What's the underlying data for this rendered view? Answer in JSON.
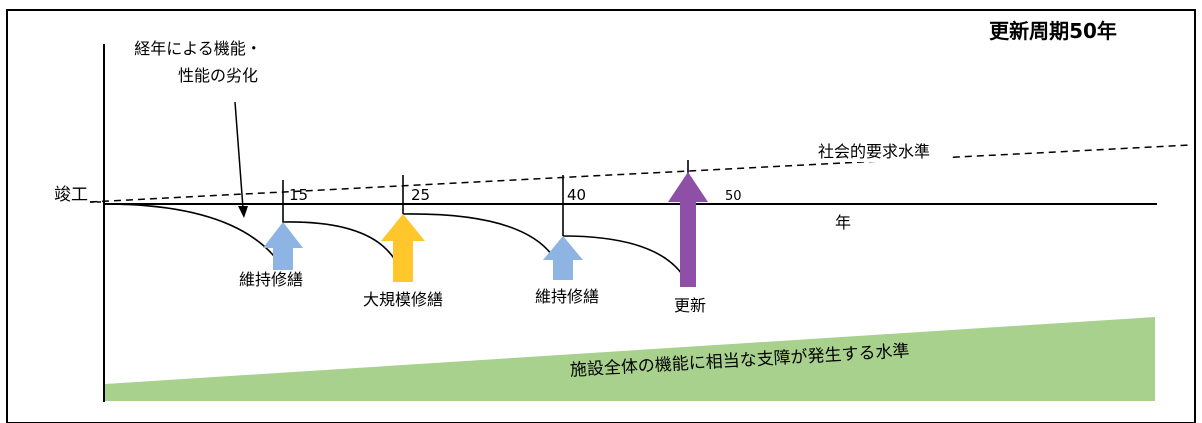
{
  "title": "更新周期50年",
  "start_label": "竣工",
  "x_axis_label": "年",
  "degradation_note": {
    "line1": "経年による機能・",
    "line2": "性能の劣化"
  },
  "social_requirement_label": "社会的要求水準",
  "critical_level_label": "施設全体の機能に相当な支障が発生する水準",
  "milestones": [
    {
      "year": "15",
      "action": "維持修繕",
      "color": "#8DB4E2"
    },
    {
      "year": "25",
      "action": "大規模修繕",
      "color": "#FFC72C"
    },
    {
      "year": "40",
      "action": "維持修繕",
      "color": "#8DB4E2"
    },
    {
      "year": "50",
      "action": "更新",
      "color": "#8E4FA6"
    }
  ],
  "colors": {
    "critical_band": "#A9D18E",
    "line": "#000000"
  }
}
